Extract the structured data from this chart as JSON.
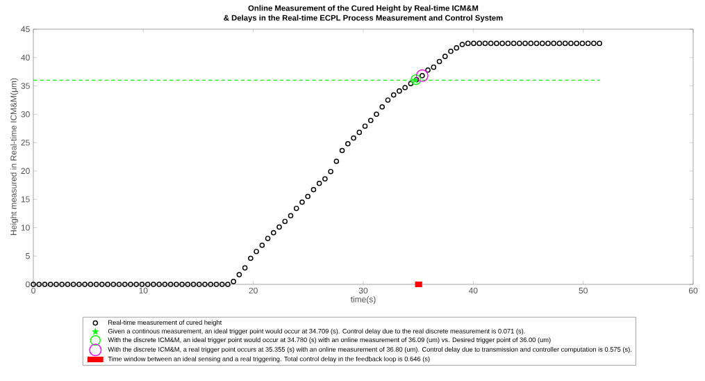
{
  "chart_data": {
    "type": "scatter",
    "title": "Online Measurement of the Cured Height by Real-time ICM&M",
    "subtitle": "& Delays in the Real-time ECPL Process Measurement and Control System",
    "xlabel": "time(s)",
    "ylabel": "Height measured in Real-time ICM&M(μm)",
    "xlim": [
      0,
      60
    ],
    "ylim": [
      0,
      45
    ],
    "xticks": [
      0,
      10,
      20,
      30,
      40,
      50,
      60
    ],
    "yticks": [
      0,
      5,
      10,
      15,
      20,
      25,
      30,
      35,
      40,
      45
    ],
    "grid": false,
    "legend": "bottom",
    "series": [
      {
        "name": "Real-time measurement of cured height",
        "type": "scatter",
        "marker": "circle",
        "color": "#000000",
        "x": [
          0,
          0.52,
          1.04,
          1.56,
          2.08,
          2.6,
          3.12,
          3.64,
          4.16,
          4.68,
          5.2,
          5.72,
          6.24,
          6.76,
          7.28,
          7.8,
          8.32,
          8.84,
          9.36,
          9.88,
          10.4,
          10.92,
          11.44,
          11.96,
          12.48,
          13,
          13.52,
          14.04,
          14.56,
          15.08,
          15.6,
          16.12,
          16.64,
          17.16,
          17.68,
          18.2,
          18.72,
          19.24,
          19.76,
          20.28,
          20.8,
          21.32,
          21.84,
          22.36,
          22.88,
          23.4,
          23.92,
          24.44,
          24.96,
          25.48,
          26,
          26.52,
          27.04,
          27.56,
          28.08,
          28.6,
          29.12,
          29.64,
          30.16,
          30.68,
          31.2,
          31.72,
          32.24,
          32.76,
          33.28,
          33.8,
          34.32,
          34.84,
          35.36,
          35.88,
          36.4,
          36.92,
          37.44,
          37.96,
          38.48,
          39,
          39.52,
          40.04,
          40.56,
          41.08,
          41.6,
          42.12,
          42.64,
          43.16,
          43.68,
          44.2,
          44.72,
          45.24,
          45.76,
          46.28,
          46.8,
          47.32,
          47.84,
          48.36,
          48.88,
          49.4,
          49.92,
          50.44,
          50.96,
          51.48
        ],
        "values": [
          0,
          0,
          0,
          0,
          0,
          0,
          0,
          0,
          0,
          0,
          0,
          0,
          0,
          0,
          0,
          0,
          0,
          0,
          0,
          0,
          0,
          0,
          0,
          0,
          0,
          0,
          0,
          0,
          0,
          0,
          0,
          0,
          0,
          0,
          0,
          0.5,
          1.7,
          2.9,
          4.6,
          5.8,
          6.9,
          8.1,
          9.1,
          10.1,
          11.1,
          12.1,
          13.4,
          14.5,
          15.5,
          16.7,
          17.8,
          18.6,
          19.9,
          21.7,
          23.6,
          24.8,
          25.8,
          26.8,
          27.9,
          28.9,
          30,
          31.3,
          32.5,
          33.4,
          34.1,
          34.7,
          35.4,
          36.1,
          36.8,
          37.8,
          38.3,
          39.3,
          40.2,
          41.1,
          41.7,
          42.3,
          42.5,
          42.5,
          42.5,
          42.5,
          42.5,
          42.5,
          42.5,
          42.5,
          42.5,
          42.5,
          42.5,
          42.5,
          42.5,
          42.5,
          42.5,
          42.5,
          42.5,
          42.5,
          42.5,
          42.5,
          42.5,
          42.5,
          42.5,
          42.5
        ]
      },
      {
        "name": "Given a continous measurement, an ideal trigger point would occur at 34.709 (s). Control delay due to the real discrete measurement is 0.071 (s).",
        "type": "scatter",
        "marker": "star",
        "color": "#00ff00",
        "x": [
          34.709
        ],
        "values": [
          36
        ]
      },
      {
        "name": "With the discrete ICM&M, an ideal trigger point would occur at 34.780 (s) with an online measurement of 36.09 (um) vs. Desired trigger point of 36.00 (um)",
        "type": "scatter",
        "marker": "circle",
        "color": "#00ff00",
        "x": [
          34.78
        ],
        "values": [
          36.1
        ]
      },
      {
        "name": "With the discrete ICM&M, a real trigger point occurs at 35.355 (s) with an online measurement of 36.80 (um). Control delay due to transmission and controller computation is 0.575 (s).",
        "type": "scatter",
        "marker": "circle",
        "color": "#ff00ff",
        "x": [
          35.355
        ],
        "values": [
          36.8
        ]
      },
      {
        "name": "Time window between an ideal sensing and a real triggering. Total control delay in the feedback loop is 0.646 (s)",
        "type": "line",
        "marker": "none",
        "line_style": "solid",
        "color": "#ff0000",
        "x": [
          34.709,
          35.355
        ],
        "values": [
          0,
          0
        ]
      },
      {
        "type": "line",
        "marker": "none",
        "line_style": "dashed",
        "color": "#00ff00",
        "x": [
          0,
          51.48
        ],
        "values": [
          36,
          36
        ]
      }
    ]
  }
}
